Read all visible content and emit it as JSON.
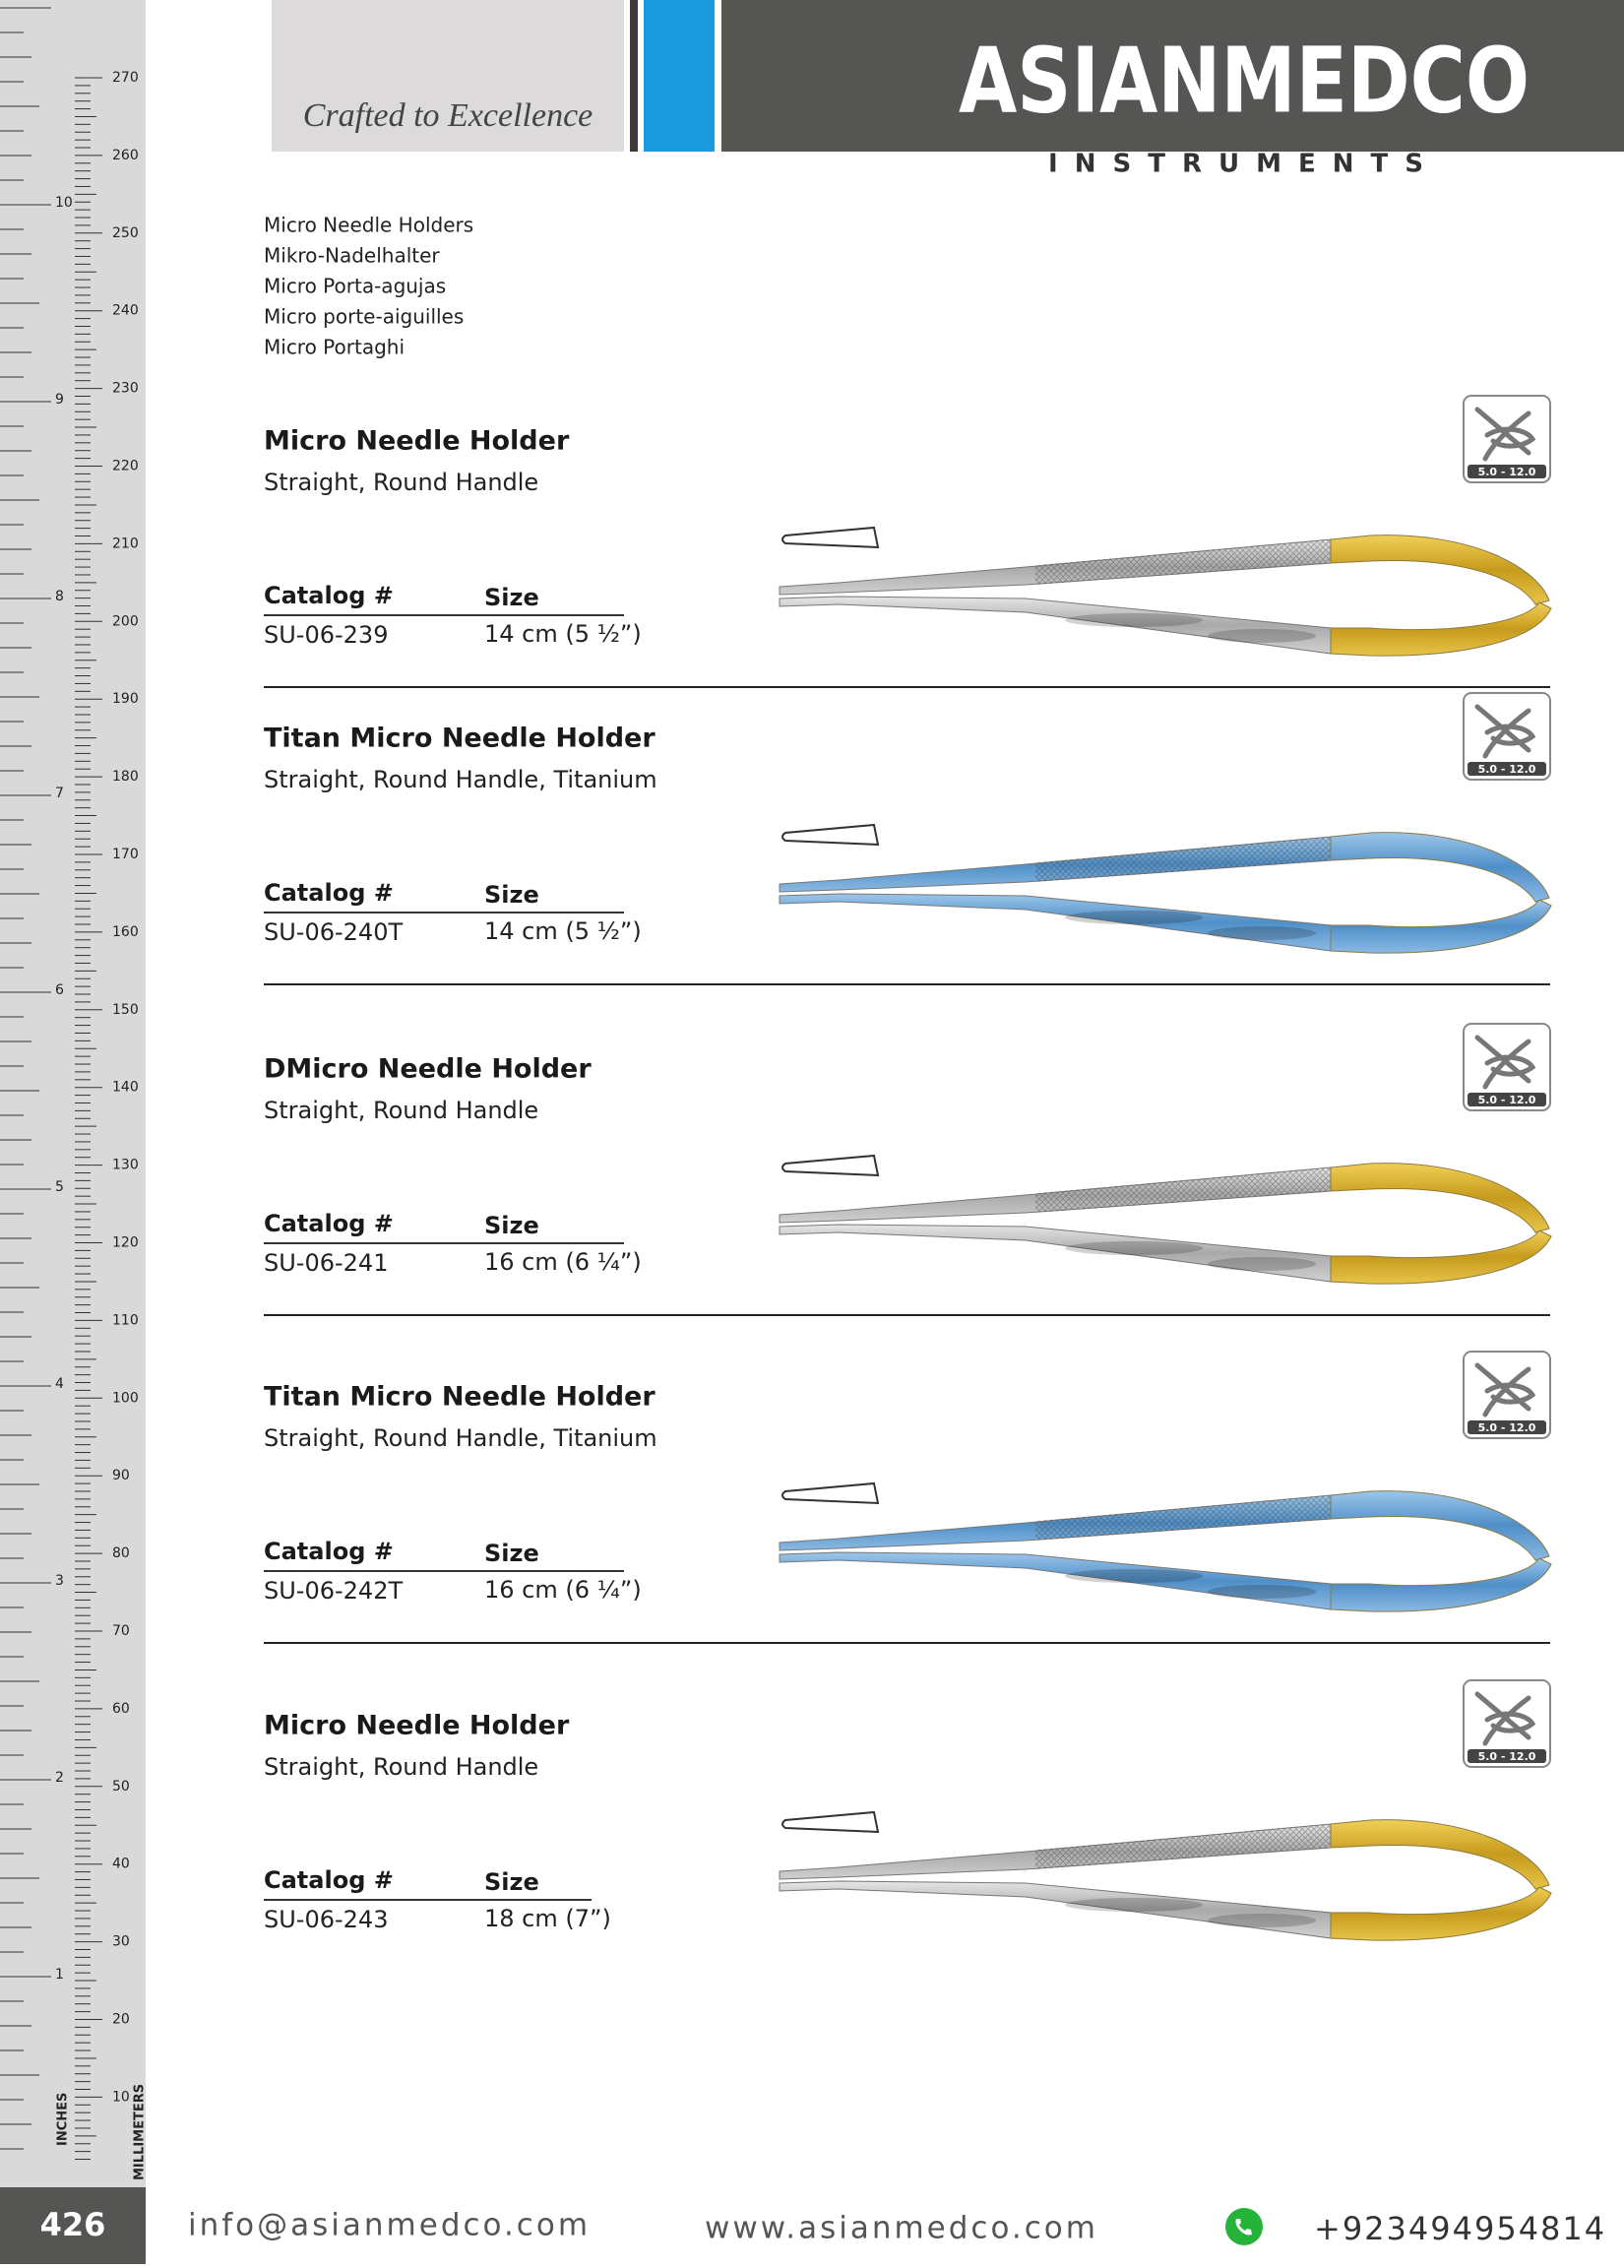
{
  "header": {
    "tagline": "Crafted to Excellence",
    "brand": "ASIANMEDCO",
    "brand_sub": "INSTRUMENTS"
  },
  "intro": [
    "Micro Needle Holders",
    "Mikro-Nadelhalter",
    "Micro Porta-agujas",
    "Micro porte-aiguilles",
    "Micro Portaghi"
  ],
  "products": [
    {
      "name": "Micro Needle Holder",
      "subtitle": "Straight, Round Handle",
      "catalog_label": "Catalog #",
      "size_label": "Size",
      "catalog": "SU-06-239",
      "size": "14 cm (5 ½”)",
      "badge": "5.0 - 12.0"
    },
    {
      "name": "Titan Micro Needle Holder",
      "subtitle": "Straight, Round Handle, Titanium",
      "catalog_label": "Catalog #",
      "size_label": "Size",
      "catalog": "SU-06-240T",
      "size": "14 cm (5 ½”)",
      "badge": "5.0 - 12.0"
    },
    {
      "name": "DMicro Needle Holder",
      "subtitle": "Straight, Round Handle",
      "catalog_label": "Catalog #",
      "size_label": "Size",
      "catalog": "SU-06-241",
      "size": "16 cm (6 ¼”)",
      "badge": "5.0 - 12.0"
    },
    {
      "name": "Titan Micro Needle Holder",
      "subtitle": "Straight, Round Handle, Titanium",
      "catalog_label": "Catalog #",
      "size_label": "Size",
      "catalog": "SU-06-242T",
      "size": "16 cm (6 ¼”)",
      "badge": "5.0 - 12.0"
    },
    {
      "name": "Micro Needle Holder",
      "subtitle": "Straight, Round Handle",
      "catalog_label": "Catalog #",
      "size_label": "Size",
      "catalog": "SU-06-243",
      "size": "18 cm (7”)",
      "badge": "5.0 - 12.0"
    }
  ],
  "ruler": {
    "inch_label": "INCHES",
    "mm_label": "MILLIMETERS",
    "inches": [
      10,
      9,
      8,
      7,
      6,
      5,
      4,
      3,
      2,
      1
    ],
    "millimeters": [
      270,
      260,
      250,
      240,
      230,
      220,
      210,
      200,
      190,
      180,
      170,
      160,
      150,
      140,
      130,
      120,
      110,
      100,
      90,
      80,
      70,
      60,
      50,
      40,
      30,
      20,
      10
    ]
  },
  "footer": {
    "page": "426",
    "email": "info@asianmedco.com",
    "website": "www.asianmedco.com",
    "phone": "+923494954814"
  }
}
